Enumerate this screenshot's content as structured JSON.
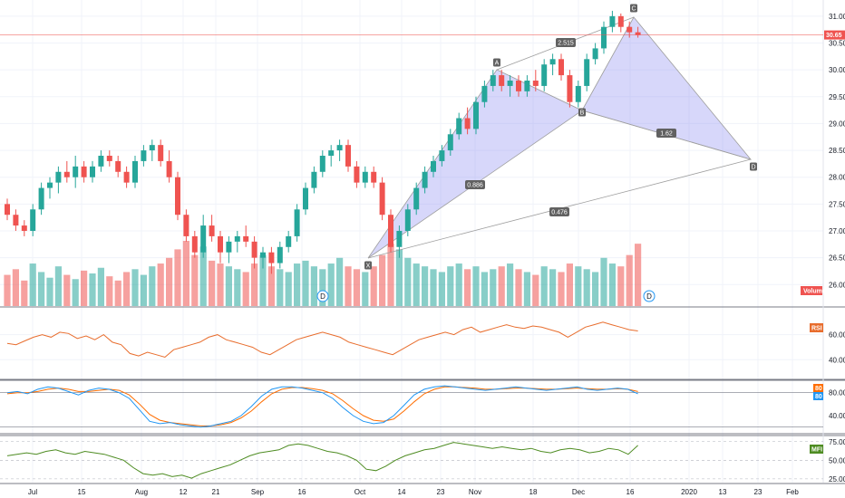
{
  "chart_data": {
    "type": "candlestick",
    "main_pane": {
      "price_axis_ticks": [
        "31.00",
        "30.50",
        "30.00",
        "29.50",
        "29.00",
        "28.50",
        "28.00",
        "27.50",
        "27.00",
        "26.50",
        "26.00"
      ],
      "ylim": [
        25.6,
        31.2
      ],
      "last_price": "30.65",
      "volume_label": "Volume",
      "dividend_marker": "D",
      "candles": [
        [
          27.5,
          27.6,
          27.2,
          27.3
        ],
        [
          27.3,
          27.4,
          27.0,
          27.1
        ],
        [
          27.1,
          27.2,
          26.9,
          27.0
        ],
        [
          27.0,
          27.5,
          26.9,
          27.4
        ],
        [
          27.4,
          27.9,
          27.3,
          27.8
        ],
        [
          27.8,
          28.0,
          27.6,
          27.9
        ],
        [
          27.9,
          28.2,
          27.7,
          28.1
        ],
        [
          28.1,
          28.3,
          27.9,
          28.0
        ],
        [
          28.0,
          28.4,
          27.8,
          28.2
        ],
        [
          28.2,
          28.3,
          27.9,
          28.0
        ],
        [
          28.0,
          28.3,
          27.9,
          28.2
        ],
        [
          28.2,
          28.5,
          28.1,
          28.4
        ],
        [
          28.4,
          28.5,
          28.2,
          28.3
        ],
        [
          28.3,
          28.4,
          28.0,
          28.1
        ],
        [
          28.1,
          28.2,
          27.8,
          27.9
        ],
        [
          27.9,
          28.4,
          27.8,
          28.3
        ],
        [
          28.3,
          28.6,
          28.2,
          28.5
        ],
        [
          28.5,
          28.7,
          28.3,
          28.6
        ],
        [
          28.6,
          28.7,
          28.2,
          28.3
        ],
        [
          28.3,
          28.5,
          27.9,
          28.0
        ],
        [
          28.0,
          28.1,
          27.2,
          27.3
        ],
        [
          27.3,
          27.4,
          26.8,
          26.9
        ],
        [
          26.9,
          27.0,
          26.5,
          26.6
        ],
        [
          26.6,
          27.3,
          26.5,
          27.1
        ],
        [
          27.1,
          27.3,
          26.8,
          26.9
        ],
        [
          26.9,
          27.0,
          26.4,
          26.6
        ],
        [
          26.6,
          26.9,
          26.4,
          26.8
        ],
        [
          26.8,
          27.0,
          26.6,
          26.9
        ],
        [
          26.9,
          27.1,
          26.7,
          26.8
        ],
        [
          26.8,
          26.9,
          26.3,
          26.5
        ],
        [
          26.5,
          26.7,
          26.3,
          26.6
        ],
        [
          26.6,
          26.7,
          26.2,
          26.4
        ],
        [
          26.4,
          26.8,
          26.3,
          26.7
        ],
        [
          26.7,
          27.0,
          26.6,
          26.9
        ],
        [
          26.9,
          27.5,
          26.8,
          27.4
        ],
        [
          27.4,
          27.9,
          27.3,
          27.8
        ],
        [
          27.8,
          28.2,
          27.7,
          28.1
        ],
        [
          28.1,
          28.5,
          28.0,
          28.4
        ],
        [
          28.4,
          28.6,
          28.2,
          28.5
        ],
        [
          28.5,
          28.7,
          28.3,
          28.6
        ],
        [
          28.6,
          28.7,
          28.1,
          28.2
        ],
        [
          28.2,
          28.3,
          27.8,
          27.9
        ],
        [
          27.9,
          28.2,
          27.8,
          28.1
        ],
        [
          28.1,
          28.2,
          27.8,
          27.9
        ],
        [
          27.9,
          28.0,
          27.2,
          27.3
        ],
        [
          27.3,
          27.4,
          26.6,
          26.7
        ],
        [
          26.7,
          27.1,
          26.5,
          27.0
        ],
        [
          27.0,
          27.5,
          26.9,
          27.4
        ],
        [
          27.4,
          27.9,
          27.3,
          27.8
        ],
        [
          27.8,
          28.2,
          27.7,
          28.1
        ],
        [
          28.1,
          28.4,
          28.0,
          28.3
        ],
        [
          28.3,
          28.6,
          28.2,
          28.5
        ],
        [
          28.5,
          28.9,
          28.4,
          28.8
        ],
        [
          28.8,
          29.2,
          28.7,
          29.1
        ],
        [
          29.1,
          29.3,
          28.8,
          28.9
        ],
        [
          28.9,
          29.5,
          28.8,
          29.4
        ],
        [
          29.4,
          29.8,
          29.3,
          29.7
        ],
        [
          29.7,
          30.0,
          29.6,
          29.9
        ],
        [
          29.9,
          30.0,
          29.6,
          29.7
        ],
        [
          29.7,
          29.9,
          29.5,
          29.8
        ],
        [
          29.8,
          29.9,
          29.5,
          29.6
        ],
        [
          29.6,
          29.9,
          29.5,
          29.8
        ],
        [
          29.8,
          30.0,
          29.6,
          29.7
        ],
        [
          29.7,
          30.2,
          29.6,
          30.1
        ],
        [
          30.1,
          30.3,
          29.9,
          30.2
        ],
        [
          30.2,
          30.3,
          29.8,
          29.9
        ],
        [
          29.9,
          30.0,
          29.3,
          29.4
        ],
        [
          29.4,
          29.8,
          29.3,
          29.7
        ],
        [
          29.7,
          30.3,
          29.6,
          30.2
        ],
        [
          30.2,
          30.5,
          30.1,
          30.4
        ],
        [
          30.4,
          30.9,
          30.3,
          30.8
        ],
        [
          30.8,
          31.1,
          30.7,
          31.0
        ],
        [
          31.0,
          31.05,
          30.7,
          30.8
        ],
        [
          30.8,
          30.9,
          30.6,
          30.7
        ],
        [
          30.7,
          30.8,
          30.6,
          30.65
        ]
      ],
      "volumes": [
        22,
        26,
        18,
        30,
        24,
        20,
        28,
        22,
        19,
        25,
        23,
        27,
        21,
        18,
        24,
        26,
        22,
        28,
        30,
        34,
        40,
        46,
        36,
        42,
        32,
        30,
        28,
        26,
        24,
        30,
        36,
        28,
        26,
        24,
        30,
        32,
        28,
        26,
        30,
        34,
        28,
        26,
        24,
        28,
        36,
        44,
        40,
        34,
        30,
        28,
        26,
        24,
        28,
        30,
        26,
        28,
        24,
        26,
        28,
        30,
        26,
        24,
        22,
        28,
        26,
        24,
        30,
        28,
        26,
        24,
        34,
        30,
        28,
        36,
        44
      ]
    },
    "pattern": {
      "points": [
        "X",
        "A",
        "B",
        "C",
        "D"
      ],
      "ratios": [
        "0.886",
        "2.515",
        "1.62",
        "0.476"
      ]
    },
    "rsi_pane": {
      "label": "RSI",
      "ticks": [
        "60.00",
        "40.00"
      ],
      "values": [
        53,
        52,
        55,
        58,
        60,
        58,
        62,
        61,
        57,
        59,
        56,
        60,
        54,
        52,
        45,
        43,
        46,
        44,
        42,
        48,
        50,
        52,
        54,
        58,
        60,
        56,
        54,
        52,
        50,
        46,
        44,
        48,
        52,
        56,
        58,
        60,
        62,
        60,
        58,
        54,
        52,
        50,
        48,
        46,
        44,
        48,
        52,
        56,
        58,
        60,
        62,
        60,
        64,
        66,
        62,
        64,
        66,
        68,
        66,
        65,
        67,
        66,
        64,
        62,
        58,
        62,
        66,
        68,
        70,
        68,
        66,
        64,
        63
      ]
    },
    "stoch_pane": {
      "label_d": "80",
      "label_k": "80",
      "ticks": [
        "80.00",
        "40.00"
      ],
      "k_values": [
        80,
        82,
        78,
        86,
        90,
        88,
        82,
        76,
        84,
        88,
        86,
        80,
        70,
        50,
        30,
        26,
        28,
        24,
        22,
        20,
        22,
        26,
        30,
        40,
        56,
        74,
        86,
        90,
        90,
        88,
        84,
        80,
        70,
        54,
        40,
        30,
        26,
        28,
        40,
        58,
        76,
        86,
        90,
        92,
        90,
        88,
        86,
        84,
        86,
        88,
        90,
        88,
        86,
        84,
        86,
        88,
        90,
        86,
        84,
        86,
        88,
        86,
        78
      ],
      "d_values": [
        78,
        80,
        80,
        82,
        86,
        88,
        86,
        82,
        82,
        84,
        86,
        84,
        76,
        60,
        42,
        32,
        28,
        26,
        24,
        22,
        22,
        24,
        28,
        36,
        48,
        64,
        78,
        86,
        89,
        89,
        87,
        84,
        78,
        66,
        52,
        40,
        32,
        30,
        34,
        48,
        64,
        78,
        86,
        90,
        90,
        89,
        88,
        86,
        86,
        87,
        88,
        88,
        87,
        86,
        86,
        87,
        88,
        87,
        86,
        86,
        87,
        86,
        82
      ]
    },
    "mfi_pane": {
      "label": "MFI",
      "ticks": [
        "75.00",
        "50.00",
        "25.00"
      ],
      "values": [
        56,
        58,
        60,
        58,
        62,
        64,
        60,
        58,
        62,
        60,
        58,
        54,
        50,
        40,
        32,
        30,
        32,
        28,
        30,
        26,
        32,
        36,
        40,
        44,
        50,
        56,
        60,
        62,
        64,
        70,
        72,
        70,
        66,
        62,
        60,
        56,
        50,
        38,
        36,
        42,
        50,
        56,
        60,
        64,
        66,
        70,
        74,
        72,
        70,
        68,
        66,
        68,
        66,
        64,
        66,
        62,
        60,
        64,
        66,
        64,
        60,
        62,
        66,
        64,
        58,
        70
      ]
    },
    "x_axis_ticks": [
      "Jul",
      "15",
      "Aug",
      "12",
      "21",
      "Sep",
      "16",
      "Oct",
      "14",
      "23",
      "Nov",
      "18",
      "Dec",
      "16",
      "2020",
      "13",
      "23",
      "Feb"
    ],
    "colors": {
      "up": "#26a69a",
      "down": "#ef5350",
      "rsi": "#e86d2d",
      "stoch_k": "#2196f3",
      "stoch_d": "#ff6d00",
      "mfi": "#4e8c22",
      "pattern_fill": "#8c8cf2",
      "pattern_line": "#9e9e9e",
      "price_line": "#ef5350"
    }
  }
}
